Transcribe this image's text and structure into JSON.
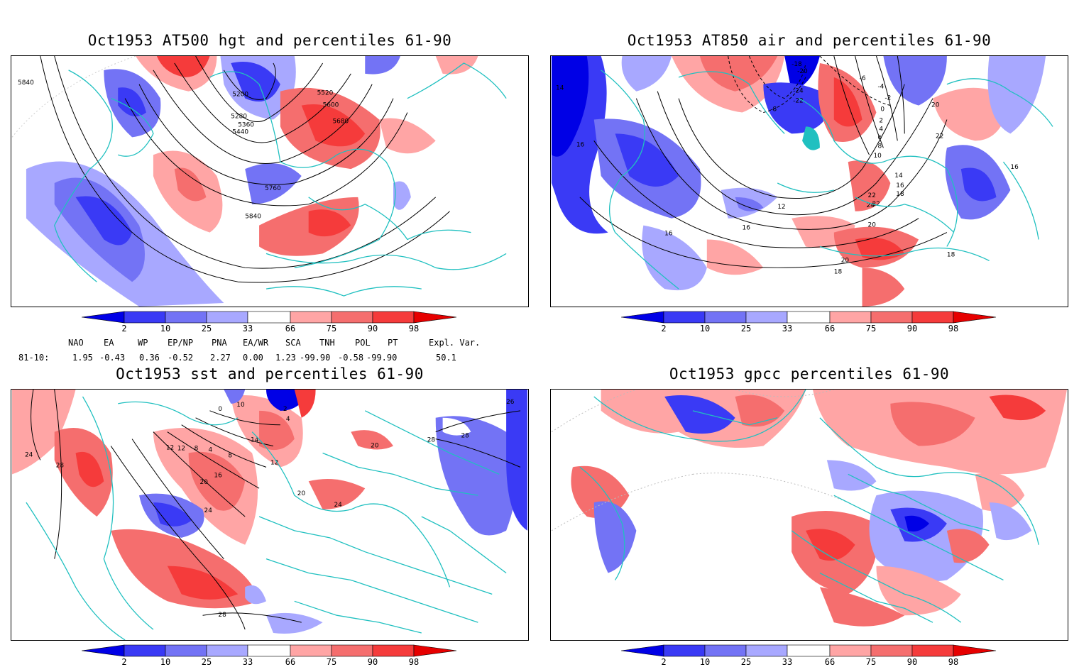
{
  "panels": [
    {
      "title": "Oct1953 AT500 hgt and percentiles 61-90",
      "contour_labels": [
        "5840",
        "5200",
        "5280",
        "5360",
        "5440",
        "5520",
        "5600",
        "5680",
        "5760",
        "5840"
      ]
    },
    {
      "title": "Oct1953 AT850 air and percentiles 61-90",
      "contour_labels": [
        "14",
        "16",
        "-18",
        "-20",
        "-22",
        "-24",
        "-8",
        "-6",
        "-4",
        "-2",
        "0",
        "2",
        "4",
        "6",
        "8",
        "10",
        "12",
        "14",
        "16",
        "18",
        "20",
        "22",
        "24",
        "20",
        "22",
        "22",
        "16",
        "16",
        "16",
        "18",
        "18",
        "20"
      ]
    },
    {
      "title": "Oct1953 sst and percentiles 61-90",
      "contour_labels": [
        "24",
        "28",
        "12",
        "8",
        "4",
        "0",
        "10",
        "14",
        "8",
        "12",
        "16",
        "20",
        "24",
        "20",
        "24",
        "28",
        "28",
        "26",
        "12",
        "20",
        "2",
        "4",
        "28"
      ]
    },
    {
      "title": "Oct1953 gpcc percentiles 61-90",
      "contour_labels": []
    }
  ],
  "colorbar": {
    "ticks": [
      "2",
      "10",
      "25",
      "33",
      "66",
      "75",
      "90",
      "98"
    ],
    "colors": [
      "#0000e6",
      "#3a3af5",
      "#7373f5",
      "#a8a8ff",
      "#ffffff",
      "#ffa5a5",
      "#f56e6e",
      "#f53b3b",
      "#e60000"
    ]
  },
  "indices": {
    "headers": [
      "NAO",
      "EA",
      "WP",
      "EP/NP",
      "PNA",
      "EA/WR",
      "SCA",
      "TNH",
      "POL",
      "PT",
      "Expl. Var."
    ],
    "row_label": "81-10:",
    "values": [
      "1.95",
      "-0.43",
      "0.36",
      "-0.52",
      "2.27",
      "0.00",
      "1.23",
      "-99.90",
      "-0.58",
      "-99.90",
      "50.1"
    ]
  }
}
